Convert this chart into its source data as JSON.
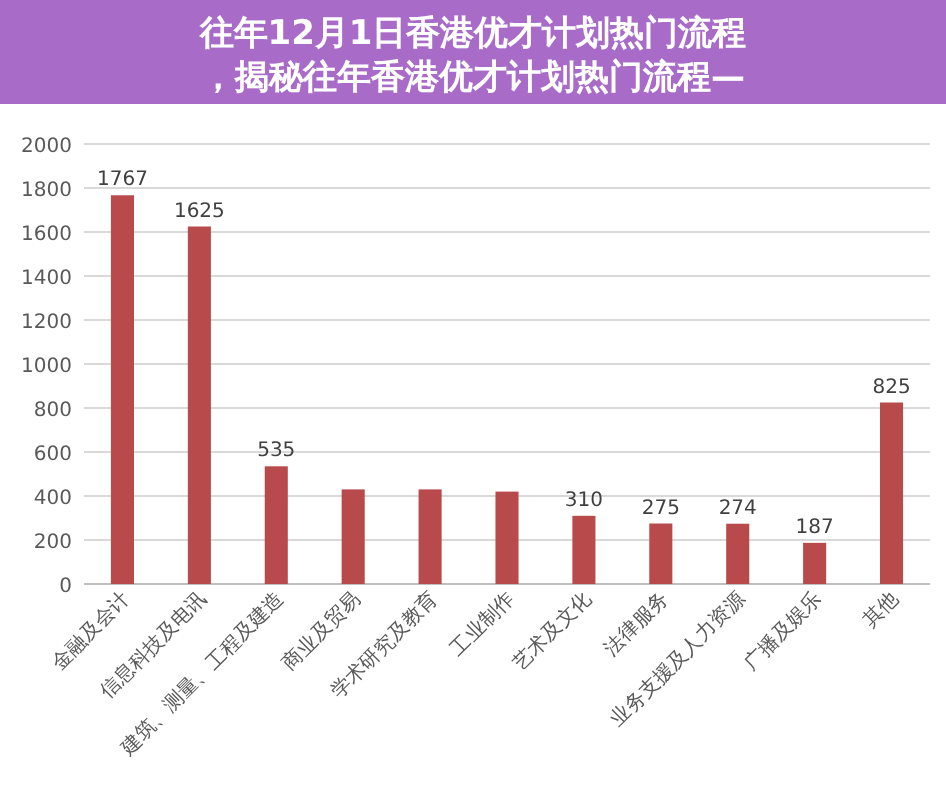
{
  "chart_data": {
    "type": "bar",
    "title": "往年12月1日香港优才计划热门流程，揭秘往年香港优才计划热门流程—",
    "categories": [
      "金融及会计",
      "信息科技及电讯",
      "建筑、测量、工程及建造",
      "商业及贸易",
      "学术研究及教育",
      "工业制作",
      "艺术及文化",
      "法律服务",
      "业务支援及人力资源",
      "广播及娱乐",
      "其他"
    ],
    "values": [
      1767,
      1625,
      535,
      430,
      430,
      420,
      310,
      275,
      274,
      187,
      825
    ],
    "value_labels": [
      "1767",
      "1625",
      "535",
      null,
      null,
      null,
      "310",
      "275",
      "274",
      "187",
      "825"
    ],
    "color": "#b84a4c",
    "ylim": [
      0,
      2000
    ],
    "yticks": [
      0,
      200,
      400,
      600,
      800,
      1000,
      1200,
      1400,
      1600,
      1800,
      2000
    ],
    "grid": "y"
  }
}
